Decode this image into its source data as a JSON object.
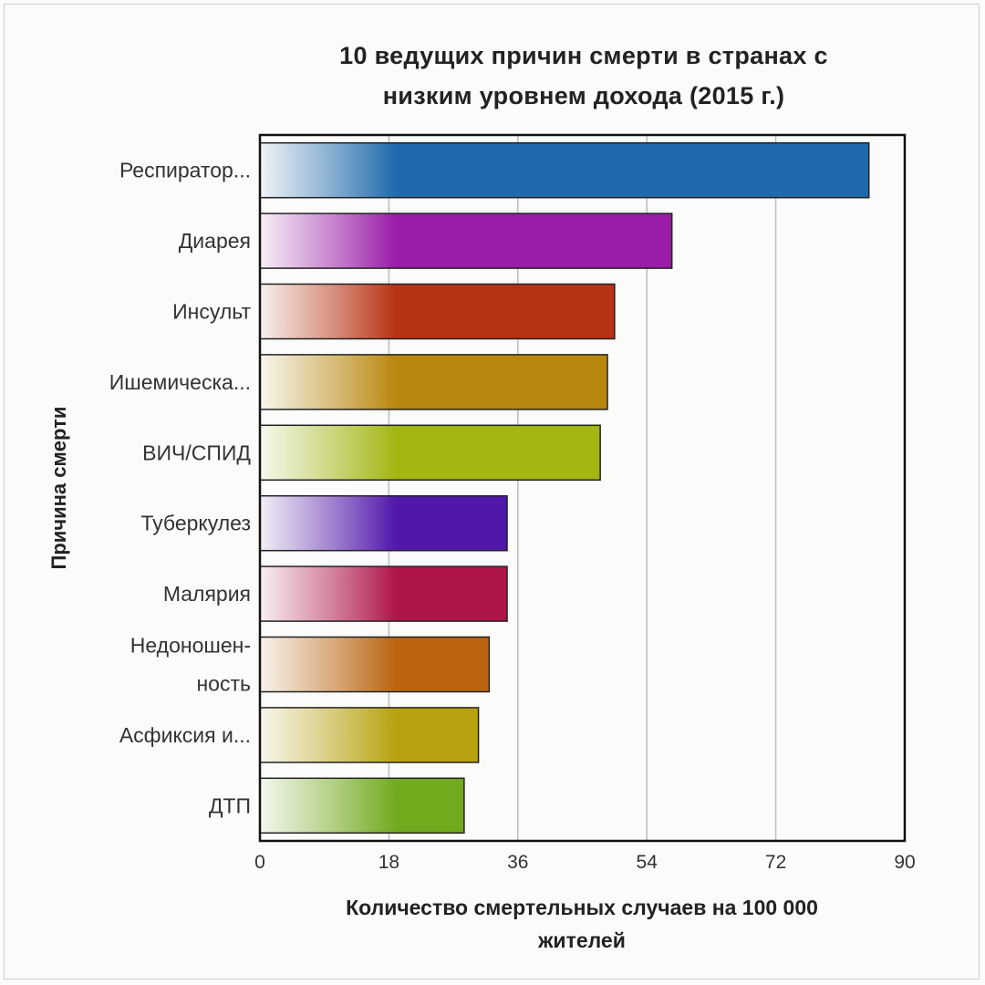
{
  "chart_data": {
    "type": "bar",
    "orientation": "horizontal",
    "title": "10 ведущих причин смерти в странах с низким уровнем дохода (2015 г.)",
    "title_lines": [
      "10 ведущих причин смерти в странах с",
      "низким уровнем дохода (2015 г.)"
    ],
    "xlabel": "Количество смертельных случаев на 100 000 жителей",
    "xlabel_lines": [
      "Количество смертельных случаев на 100 000",
      "жителей"
    ],
    "ylabel": "Причина смерти",
    "xlim": [
      0,
      90
    ],
    "xticks": [
      "0",
      "18",
      "36",
      "54",
      "72",
      "90"
    ],
    "grid": true,
    "categories": [
      [
        "Респиратор..."
      ],
      [
        "Диарея"
      ],
      [
        "Инсульт"
      ],
      [
        "Ишемическа..."
      ],
      [
        "ВИЧ/СПИД"
      ],
      [
        "Туберкулез"
      ],
      [
        "Малярия"
      ],
      [
        "Недоношен-",
        "ность"
      ],
      [
        "Асфиксия и..."
      ],
      [
        "ДТП"
      ]
    ],
    "values": [
      85,
      57.5,
      49.5,
      48.5,
      47.5,
      34.5,
      34.5,
      32,
      30.5,
      28.5
    ],
    "colors": [
      "#1f6aad",
      "#9a1ca8",
      "#b83214",
      "#b9870e",
      "#a3b612",
      "#5117ab",
      "#b0154a",
      "#ba640f",
      "#b8a20f",
      "#72aa1e"
    ]
  }
}
